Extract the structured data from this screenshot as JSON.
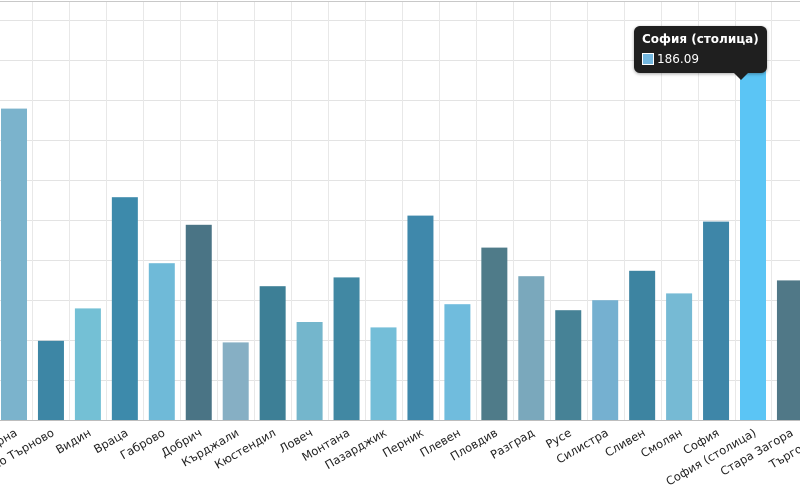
{
  "chart_data": {
    "type": "bar",
    "title": "",
    "xlabel": "",
    "ylabel": "",
    "ylim": [
      0,
      200
    ],
    "grid": true,
    "categories": [
      "Варна",
      "Велико Търново",
      "Видин",
      "Враца",
      "Габрово",
      "Добрич",
      "Кърджали",
      "Кюстендил",
      "Ловеч",
      "Монтана",
      "Пазарджик",
      "Перник",
      "Плевен",
      "Пловдив",
      "Разград",
      "Русе",
      "Силистра",
      "Сливен",
      "Смолян",
      "София",
      "София (столица)",
      "Стара Загора",
      "Търговище"
    ],
    "values": [
      155.7,
      39.6,
      55.8,
      111.4,
      78.4,
      97.6,
      38.8,
      66.9,
      49.0,
      71.3,
      46.3,
      102.2,
      57.9,
      86.2,
      71.9,
      54.9,
      59.9,
      74.6,
      63.3,
      99.2,
      186.09,
      69.8,
      71.9
    ],
    "colors": [
      "#7bb3cc",
      "#3d86a5",
      "#74c0d5",
      "#3d8aab",
      "#6fbad8",
      "#4a7485",
      "#86afc4",
      "#3d7f96",
      "#74b6cc",
      "#4188a3",
      "#74bed8",
      "#3f88ab",
      "#70bcdd",
      "#4f7b89",
      "#7aa8bc",
      "#468296",
      "#75b0d0",
      "#3d84a1",
      "#76bad4",
      "#3e86a8",
      "#5bc5f5",
      "#507887",
      "#4a88a0"
    ],
    "highlight_index": 20
  },
  "tooltip": {
    "title": "София (столица)",
    "value": "186.09",
    "swatch_color": "#74b8e0"
  }
}
